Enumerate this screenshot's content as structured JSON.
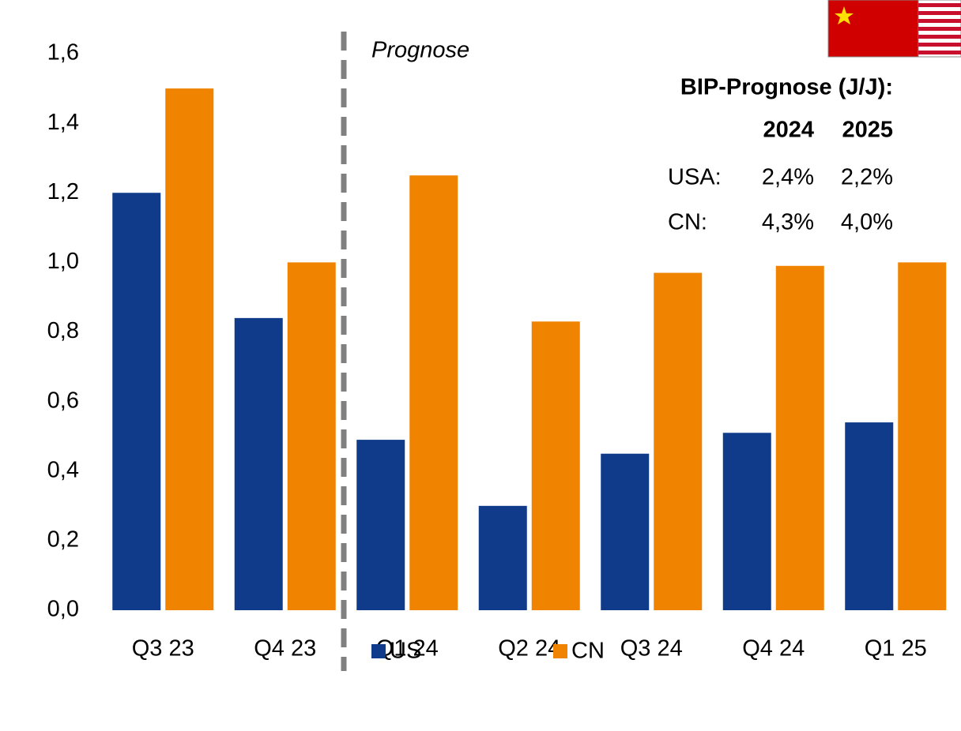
{
  "chart_data": {
    "type": "bar",
    "categories": [
      "Q3 23",
      "Q4 23",
      "Q1 24",
      "Q2 24",
      "Q3 24",
      "Q4 24",
      "Q1 25"
    ],
    "series": [
      {
        "name": "US",
        "color": "#0f3b8a",
        "values": [
          1.2,
          0.84,
          0.49,
          0.3,
          0.45,
          0.51,
          0.54
        ]
      },
      {
        "name": "CN",
        "color": "#f08300",
        "values": [
          1.5,
          1.0,
          1.25,
          0.83,
          0.97,
          0.99,
          1.0
        ]
      }
    ],
    "ylim": [
      0,
      1.6
    ],
    "yticks": [
      {
        "value": 0,
        "label": "0,0"
      },
      {
        "value": 0.2,
        "label": "0,2"
      },
      {
        "value": 0.4,
        "label": "0,4"
      },
      {
        "value": 0.6,
        "label": "0,6"
      },
      {
        "value": 0.8,
        "label": "0,8"
      },
      {
        "value": 1.0,
        "label": "1,0"
      },
      {
        "value": 1.2,
        "label": "1,2"
      },
      {
        "value": 1.4,
        "label": "1,4"
      },
      {
        "value": 1.6,
        "label": "1,6"
      }
    ],
    "annotation": "Prognose",
    "forecast_table": {
      "title": "BIP-Prognose (J/J):",
      "columns": [
        "2024",
        "2025"
      ],
      "rows": [
        {
          "label": "USA:",
          "values": [
            "2,4%",
            "2,2%"
          ]
        },
        {
          "label": "CN:",
          "values": [
            "4,3%",
            "4,0%"
          ]
        }
      ]
    }
  }
}
